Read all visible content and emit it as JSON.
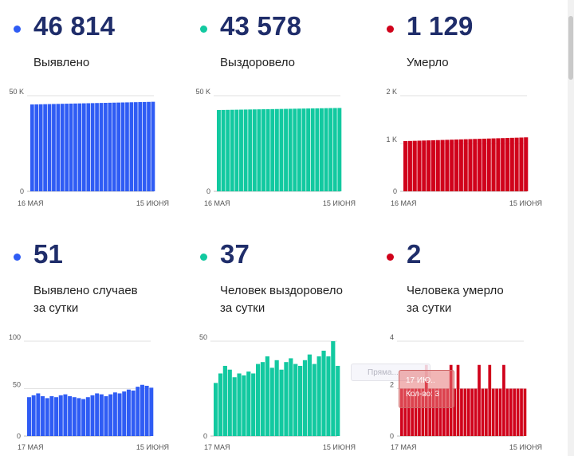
{
  "panels": [
    {
      "id": "confirmed",
      "value": "46 814",
      "label_lines": [
        "Выявлено"
      ],
      "color": "#2f5cf4"
    },
    {
      "id": "recovered",
      "value": "43 578",
      "label_lines": [
        "Выздоровело"
      ],
      "color": "#12c9a0"
    },
    {
      "id": "deaths",
      "value": "1 129",
      "label_lines": [
        "Умерло"
      ],
      "color": "#d0021b"
    },
    {
      "id": "daily-confirmed",
      "value": "51",
      "label_lines": [
        "Выявлено случаев",
        "за сутки"
      ],
      "color": "#2f5cf4"
    },
    {
      "id": "daily-recovered",
      "value": "37",
      "label_lines": [
        "Человек выздоровело",
        "за сутки"
      ],
      "color": "#12c9a0"
    },
    {
      "id": "daily-deaths",
      "value": "2",
      "label_lines": [
        "Человека умерло",
        "за сутки"
      ],
      "color": "#d0021b"
    }
  ],
  "chart_data": [
    {
      "type": "bar",
      "title": "Выявлено",
      "color": "#2f5cf4",
      "x_start_label": "16 МАЯ",
      "x_end_label": "15 ИЮНЯ",
      "yticks": [
        {
          "v": 0,
          "label": "0"
        },
        {
          "v": 50000,
          "label": "50 K"
        }
      ],
      "ylim": [
        0,
        50000
      ],
      "values": [
        45400,
        45450,
        45500,
        45550,
        45600,
        45650,
        45700,
        45750,
        45800,
        45850,
        45900,
        45950,
        46000,
        46050,
        46100,
        46150,
        46200,
        46250,
        46300,
        46350,
        46400,
        46450,
        46500,
        46550,
        46600,
        46650,
        46700,
        46750,
        46814
      ]
    },
    {
      "type": "bar",
      "title": "Выздоровело",
      "color": "#12c9a0",
      "x_start_label": "16 МАЯ",
      "x_end_label": "15 ИЮНЯ",
      "yticks": [
        {
          "v": 0,
          "label": "0"
        },
        {
          "v": 50000,
          "label": "50 K"
        }
      ],
      "ylim": [
        0,
        50000
      ],
      "values": [
        42500,
        42540,
        42580,
        42620,
        42660,
        42700,
        42740,
        42780,
        42820,
        42860,
        42900,
        42940,
        42980,
        43020,
        43060,
        43100,
        43140,
        43180,
        43220,
        43260,
        43300,
        43340,
        43380,
        43420,
        43460,
        43500,
        43540,
        43578
      ]
    },
    {
      "type": "bar",
      "title": "Умерло",
      "color": "#d0021b",
      "x_start_label": "16 МАЯ",
      "x_end_label": "15 ИЮНЯ",
      "yticks": [
        {
          "v": 0,
          "label": "0"
        },
        {
          "v": 1000,
          "label": "1 K"
        },
        {
          "v": 2000,
          "label": "2 K"
        }
      ],
      "ylim": [
        0,
        2000
      ],
      "values": [
        1050,
        1053,
        1056,
        1059,
        1062,
        1065,
        1068,
        1071,
        1074,
        1077,
        1080,
        1083,
        1086,
        1089,
        1092,
        1095,
        1098,
        1101,
        1104,
        1107,
        1110,
        1113,
        1116,
        1119,
        1122,
        1125,
        1129
      ]
    },
    {
      "type": "bar",
      "title": "Выявлено случаев за сутки",
      "color": "#2f5cf4",
      "x_start_label": "17 МАЯ",
      "x_end_label": "15 ИЮНЯ",
      "yticks": [
        {
          "v": 0,
          "label": "0"
        },
        {
          "v": 50,
          "label": "50"
        },
        {
          "v": 100,
          "label": "100"
        }
      ],
      "ylim": [
        0,
        100
      ],
      "values": [
        41,
        43,
        45,
        42,
        40,
        42,
        41,
        43,
        44,
        42,
        41,
        40,
        39,
        41,
        43,
        45,
        44,
        42,
        44,
        46,
        45,
        47,
        49,
        48,
        52,
        54,
        53,
        51
      ]
    },
    {
      "type": "bar",
      "title": "Человек выздоровело за сутки",
      "color": "#12c9a0",
      "x_start_label": "17 МАЯ",
      "x_end_label": "15 ИЮНЯ",
      "yticks": [
        {
          "v": 0,
          "label": "0"
        },
        {
          "v": 50,
          "label": "50"
        }
      ],
      "ylim": [
        0,
        50
      ],
      "values": [
        28,
        33,
        37,
        35,
        31,
        33,
        32,
        34,
        33,
        38,
        39,
        42,
        36,
        40,
        35,
        39,
        41,
        38,
        37,
        40,
        43,
        38,
        42,
        45,
        42,
        50,
        37
      ]
    },
    {
      "type": "bar",
      "title": "Человека умерло за сутки",
      "color": "#d0021b",
      "x_start_label": "17 МАЯ",
      "x_end_label": "15 ИЮНЯ",
      "yticks": [
        {
          "v": 0,
          "label": "0"
        },
        {
          "v": 2,
          "label": "2"
        },
        {
          "v": 4,
          "label": "4"
        }
      ],
      "ylim": [
        0,
        4
      ],
      "values": [
        2,
        2,
        2,
        2,
        2,
        2,
        2,
        3,
        2,
        2,
        2,
        2,
        2,
        2,
        3,
        2,
        3,
        2,
        2,
        2,
        2,
        2,
        3,
        2,
        2,
        3,
        2,
        2,
        2,
        3,
        2,
        2,
        2,
        2,
        2,
        2
      ]
    }
  ],
  "tooltip": {
    "line1": "17 ИЮ..",
    "line2": "Кол-во: 3"
  },
  "ghost_label": "Пряма..."
}
